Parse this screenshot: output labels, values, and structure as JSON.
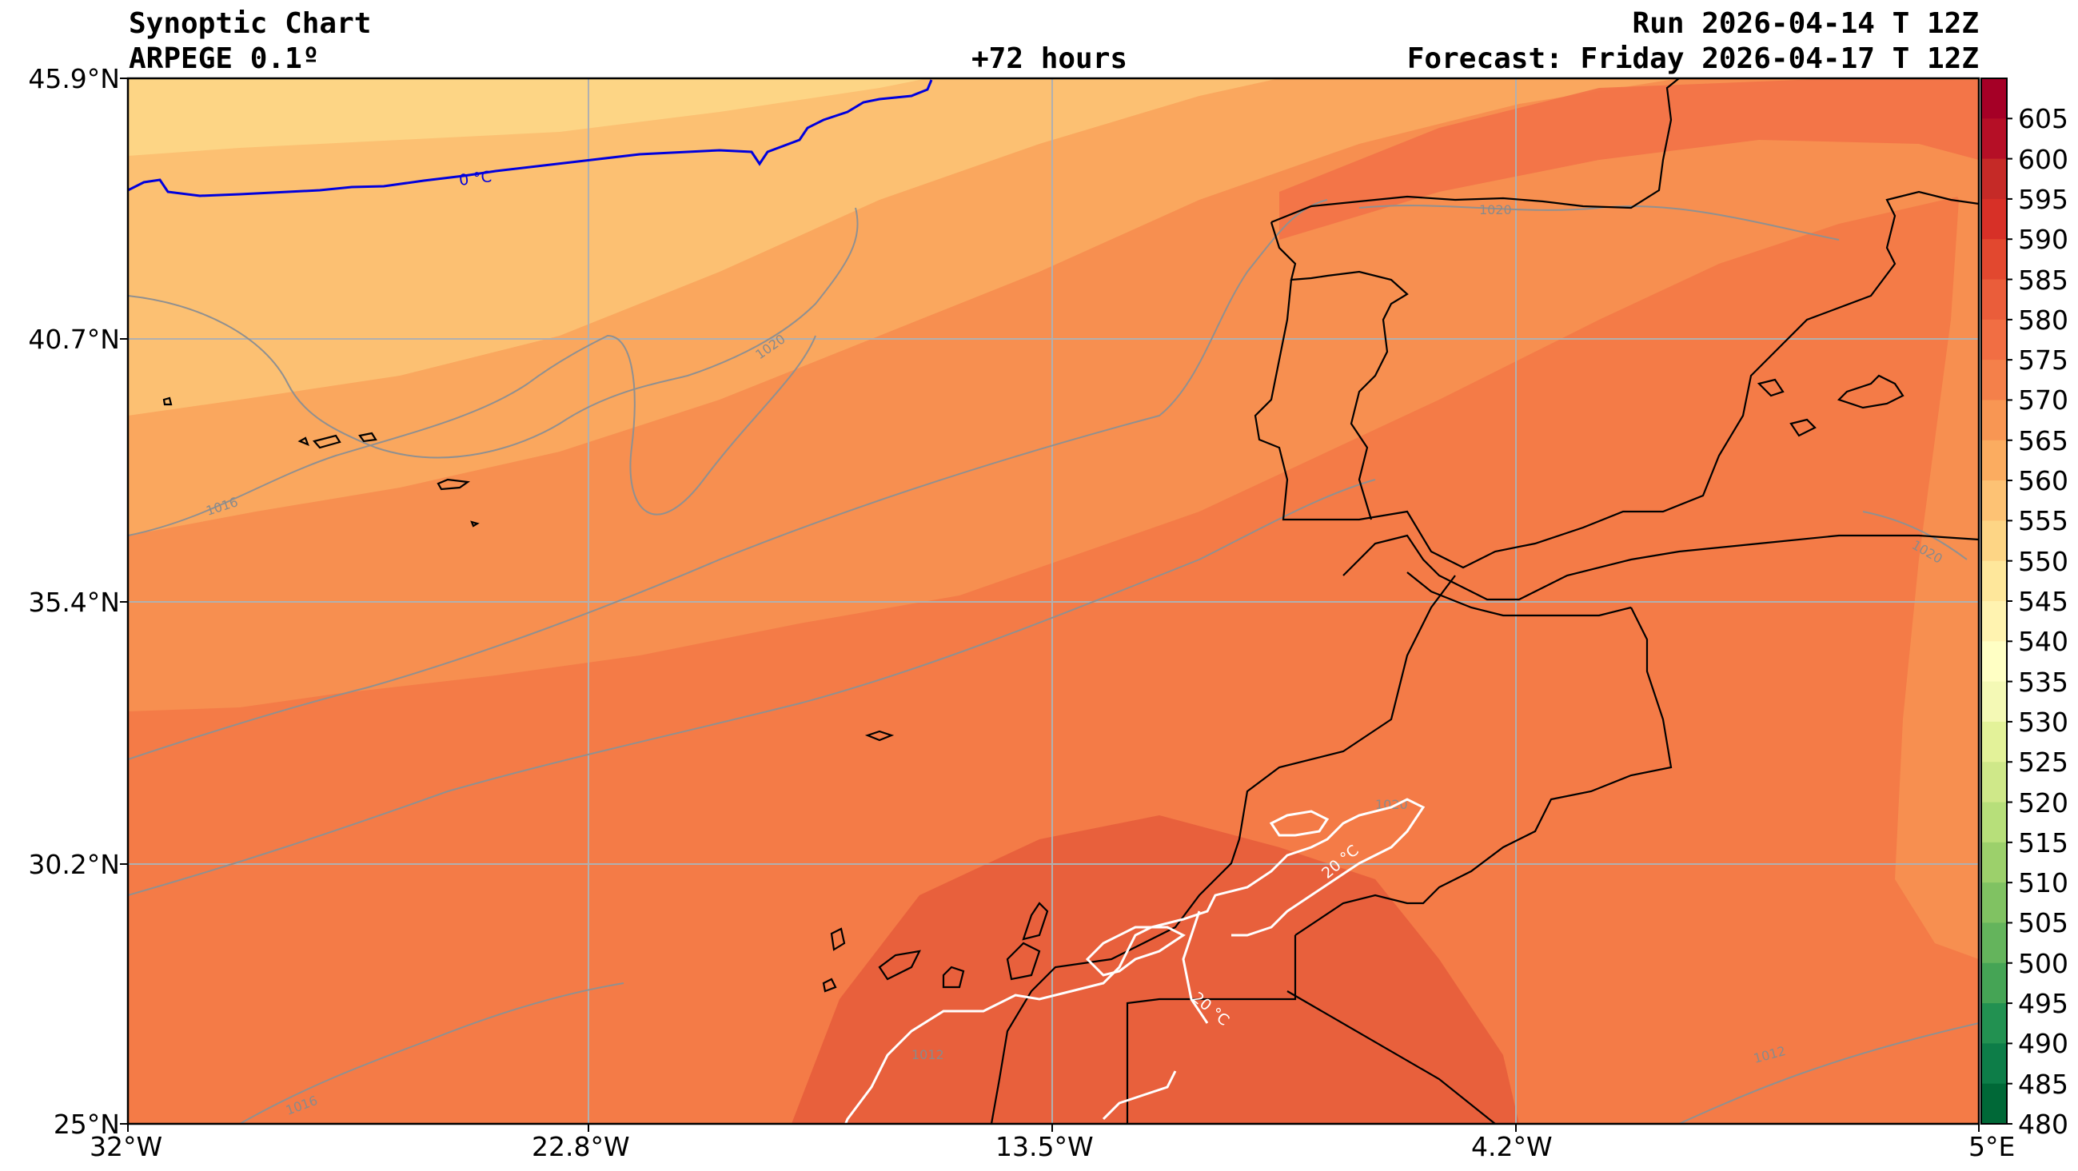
{
  "header": {
    "title": "Synoptic Chart",
    "model": "ARPEGE 0.1º",
    "lead_time": "+72 hours",
    "run": "Run 2026-04-14 T 12Z",
    "forecast": "Forecast: Friday 2026-04-17 T 12Z"
  },
  "axes": {
    "lat_labels": [
      "45.9°N",
      "40.7°N",
      "35.4°N",
      "30.2°N",
      "25°N"
    ],
    "lon_labels": [
      "32°W",
      "22.8°W",
      "13.5°W",
      "4.2°W",
      "5°E"
    ]
  },
  "colorbar": {
    "labels": [
      "605",
      "600",
      "595",
      "590",
      "585",
      "580",
      "575",
      "570",
      "565",
      "560",
      "555",
      "550",
      "545",
      "540",
      "535",
      "530",
      "525",
      "520",
      "515",
      "510",
      "505",
      "500",
      "495",
      "490",
      "485",
      "480"
    ],
    "colors": [
      "#a50026",
      "#b50f26",
      "#c52a27",
      "#d73027",
      "#e2482f",
      "#ea5d3a",
      "#f16e43",
      "#f4804a",
      "#f89653",
      "#fbac60",
      "#fdc274",
      "#fdd585",
      "#fee79b",
      "#fff3b0",
      "#ffffc4",
      "#f4f9b5",
      "#e3f299",
      "#cfe889",
      "#b7df7a",
      "#9cd06b",
      "#80c262",
      "#64b45c",
      "#45a455",
      "#229151",
      "#0d7d48",
      "#006837"
    ]
  },
  "isolines": {
    "freeze_label": "0 °C",
    "temp_label_1": "20 °C",
    "temp_label_2": "20 °C",
    "pressure_labels": [
      "1020",
      "1016",
      "1020",
      "1020",
      "1012",
      "1016",
      "1020",
      "1012"
    ]
  },
  "colors": {
    "freeze_line": "#0000dd",
    "temp_line": "#ffffff",
    "pressure_line": "#909090",
    "coast": "#000000",
    "grid": "#b0b0b0"
  }
}
